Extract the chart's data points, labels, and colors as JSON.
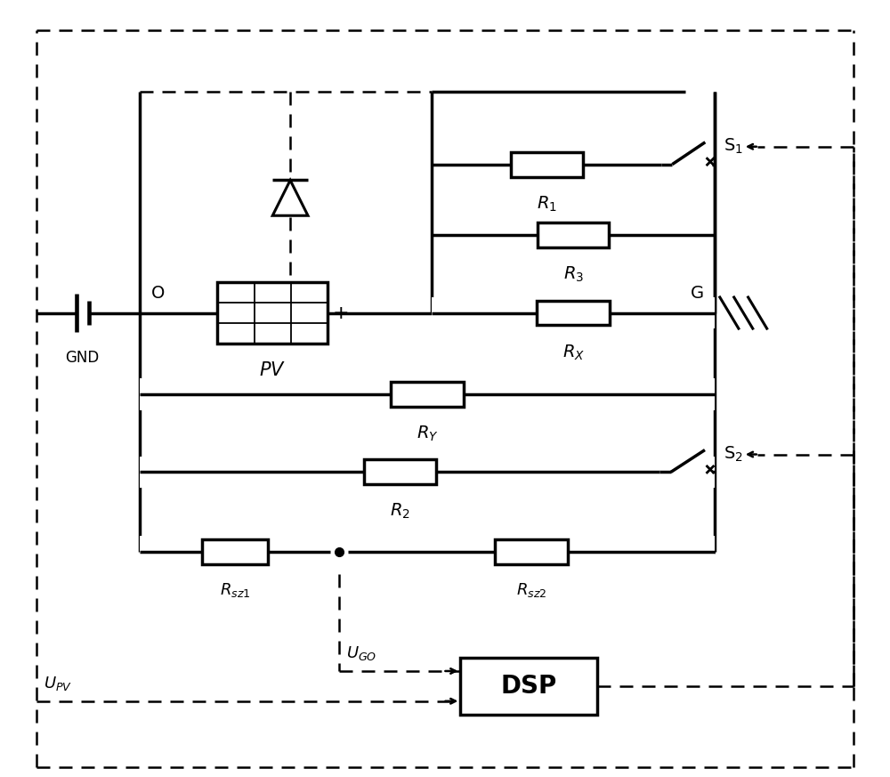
{
  "background_color": "#ffffff",
  "lw": 2.5,
  "lw_d": 1.8,
  "lw_thin": 1.5,
  "fig_width": 10.0,
  "fig_height": 8.73,
  "fs": 14,
  "fs_large": 20,
  "labels": {
    "GND": "GND",
    "O": "O",
    "G": "G",
    "PV": "$PV$",
    "R1": "$R_1$",
    "R2": "$R_2$",
    "R3": "$R_3$",
    "RX": "$R_X$",
    "RY": "$R_Y$",
    "Rsz1": "$R_{sz1}$",
    "Rsz2": "$R_{sz2}$",
    "S1": "S$_1$",
    "S2": "S$_2$",
    "DSP": "DSP",
    "UGO": "$U_{GO}$",
    "UPV": "$U_{PV}$",
    "minus": "$-$",
    "plus": "$+$"
  }
}
